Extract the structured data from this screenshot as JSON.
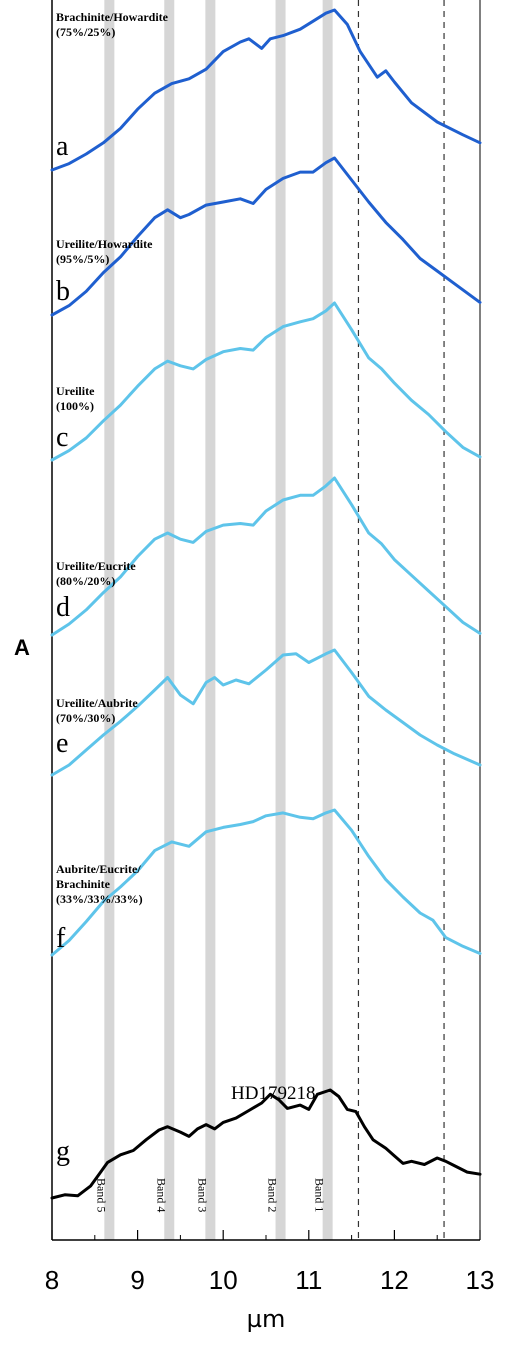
{
  "chart_data": {
    "type": "line",
    "x_axis": {
      "label": "µm",
      "range": [
        8,
        13
      ],
      "ticks": [
        "8",
        "9",
        "10",
        "11",
        "12",
        "13"
      ]
    },
    "y_axis": {
      "label": "A",
      "numeric_ticks": false
    },
    "grid": false,
    "band_markers": [
      {
        "name": "Band 5",
        "x": 8.67
      },
      {
        "name": "Band 4",
        "x": 9.37
      },
      {
        "name": "Band 3",
        "x": 9.85
      },
      {
        "name": "Band 2",
        "x": 10.67
      },
      {
        "name": "Band 1",
        "x": 11.22
      }
    ],
    "dashed_lines": [
      11.58,
      12.58
    ],
    "annotation": "HD179218",
    "series": [
      {
        "letter": "a",
        "label_line1": "Brachinite/Howardite",
        "label_line2": "(75%/25%)",
        "color": "#1f5fcf",
        "x": [
          8.0,
          8.2,
          8.4,
          8.6,
          8.8,
          9.0,
          9.2,
          9.4,
          9.6,
          9.8,
          10.0,
          10.2,
          10.3,
          10.45,
          10.55,
          10.7,
          10.9,
          11.05,
          11.2,
          11.3,
          11.45,
          11.6,
          11.8,
          11.9,
          12.0,
          12.2,
          12.5,
          12.8,
          13.0
        ],
        "y": [
          0.0,
          0.04,
          0.1,
          0.17,
          0.26,
          0.38,
          0.48,
          0.54,
          0.57,
          0.63,
          0.74,
          0.8,
          0.82,
          0.76,
          0.82,
          0.84,
          0.88,
          0.93,
          0.98,
          1.0,
          0.91,
          0.74,
          0.58,
          0.62,
          0.55,
          0.42,
          0.3,
          0.22,
          0.17
        ]
      },
      {
        "letter": "b",
        "label_line1": "Ureilite/Howardite",
        "label_line2": "(95%/5%)",
        "color": "#1f5fcf",
        "x": [
          8.0,
          8.2,
          8.4,
          8.6,
          8.8,
          9.0,
          9.2,
          9.35,
          9.5,
          9.6,
          9.8,
          10.0,
          10.2,
          10.35,
          10.5,
          10.7,
          10.9,
          11.05,
          11.2,
          11.3,
          11.5,
          11.7,
          11.9,
          12.1,
          12.3,
          12.5,
          12.7,
          13.0
        ],
        "y": [
          0.0,
          0.06,
          0.15,
          0.27,
          0.37,
          0.5,
          0.62,
          0.67,
          0.62,
          0.64,
          0.7,
          0.72,
          0.74,
          0.71,
          0.8,
          0.87,
          0.91,
          0.91,
          0.97,
          1.0,
          0.86,
          0.72,
          0.59,
          0.48,
          0.36,
          0.28,
          0.2,
          0.08
        ]
      },
      {
        "letter": "c",
        "label_line1": "Ureilite",
        "label_line2": "(100%)",
        "color": "#5ec4ea",
        "x": [
          8.0,
          8.2,
          8.4,
          8.6,
          8.8,
          9.0,
          9.2,
          9.35,
          9.5,
          9.65,
          9.8,
          10.0,
          10.2,
          10.35,
          10.5,
          10.7,
          10.9,
          11.05,
          11.2,
          11.3,
          11.5,
          11.7,
          11.85,
          12.0,
          12.2,
          12.4,
          12.6,
          12.8,
          13.0
        ],
        "y": [
          0.0,
          0.06,
          0.14,
          0.25,
          0.35,
          0.47,
          0.58,
          0.63,
          0.6,
          0.58,
          0.64,
          0.69,
          0.71,
          0.7,
          0.78,
          0.85,
          0.88,
          0.9,
          0.95,
          1.0,
          0.83,
          0.65,
          0.58,
          0.49,
          0.38,
          0.29,
          0.18,
          0.08,
          0.02
        ]
      },
      {
        "letter": "d",
        "label_line1": "Ureilite/Eucrite",
        "label_line2": "(80%/20%)",
        "color": "#5ec4ea",
        "x": [
          8.0,
          8.2,
          8.4,
          8.6,
          8.8,
          9.0,
          9.2,
          9.35,
          9.5,
          9.65,
          9.8,
          10.0,
          10.2,
          10.35,
          10.5,
          10.7,
          10.9,
          11.05,
          11.2,
          11.3,
          11.5,
          11.7,
          11.85,
          12.0,
          12.2,
          12.4,
          12.6,
          12.8,
          13.0
        ],
        "y": [
          0.0,
          0.07,
          0.16,
          0.27,
          0.37,
          0.5,
          0.61,
          0.65,
          0.61,
          0.59,
          0.66,
          0.7,
          0.71,
          0.7,
          0.79,
          0.86,
          0.89,
          0.89,
          0.95,
          1.0,
          0.83,
          0.65,
          0.58,
          0.48,
          0.38,
          0.28,
          0.18,
          0.08,
          0.01
        ]
      },
      {
        "letter": "e",
        "label_line1": "Ureilite/Aubrite",
        "label_line2": "(70%/30%)",
        "color": "#5ec4ea",
        "x": [
          8.0,
          8.2,
          8.4,
          8.6,
          8.8,
          9.0,
          9.2,
          9.35,
          9.5,
          9.65,
          9.8,
          9.9,
          10.0,
          10.15,
          10.3,
          10.5,
          10.7,
          10.85,
          11.0,
          11.2,
          11.3,
          11.5,
          11.7,
          11.9,
          12.1,
          12.3,
          12.5,
          12.7,
          13.0
        ],
        "y": [
          0.0,
          0.08,
          0.2,
          0.32,
          0.43,
          0.55,
          0.68,
          0.78,
          0.64,
          0.57,
          0.74,
          0.78,
          0.72,
          0.76,
          0.73,
          0.84,
          0.96,
          0.97,
          0.9,
          0.97,
          1.0,
          0.82,
          0.63,
          0.52,
          0.42,
          0.32,
          0.24,
          0.17,
          0.08
        ]
      },
      {
        "letter": "f",
        "label_line1": "",
        "label_line2": "",
        "color": "#5ec4ea",
        "x": [
          8.0,
          8.2,
          8.4,
          8.6,
          8.8,
          9.0,
          9.2,
          9.4,
          9.6,
          9.8,
          10.0,
          10.2,
          10.35,
          10.5,
          10.7,
          10.9,
          11.05,
          11.2,
          11.3,
          11.5,
          11.7,
          11.9,
          12.1,
          12.3,
          12.45,
          12.6,
          12.8,
          13.0
        ],
        "y": [
          0.0,
          0.1,
          0.23,
          0.37,
          0.47,
          0.58,
          0.72,
          0.78,
          0.75,
          0.85,
          0.88,
          0.9,
          0.92,
          0.96,
          0.98,
          0.95,
          0.94,
          0.98,
          1.0,
          0.86,
          0.68,
          0.52,
          0.4,
          0.29,
          0.24,
          0.12,
          0.06,
          0.01
        ]
      },
      {
        "letter": "g",
        "label_line1": "Aubrite/Eucrite/",
        "label_line2": "Brachinite",
        "label_line3": "(33%/33%/33%)",
        "color": "#000000",
        "x": [
          8.0,
          8.15,
          8.3,
          8.45,
          8.55,
          8.65,
          8.8,
          8.95,
          9.1,
          9.25,
          9.35,
          9.5,
          9.6,
          9.7,
          9.8,
          9.9,
          10.0,
          10.15,
          10.3,
          10.45,
          10.55,
          10.65,
          10.75,
          10.9,
          11.0,
          11.1,
          11.25,
          11.35,
          11.45,
          11.55,
          11.65,
          11.75,
          11.9,
          12.0,
          12.1,
          12.2,
          12.35,
          12.5,
          12.6,
          12.7,
          12.85,
          13.0
        ],
        "y": [
          0.0,
          0.03,
          0.02,
          0.11,
          0.22,
          0.33,
          0.4,
          0.44,
          0.54,
          0.63,
          0.66,
          0.61,
          0.57,
          0.64,
          0.68,
          0.64,
          0.7,
          0.74,
          0.81,
          0.88,
          0.96,
          0.91,
          0.83,
          0.86,
          0.82,
          0.96,
          1.0,
          0.94,
          0.82,
          0.8,
          0.66,
          0.54,
          0.46,
          0.39,
          0.32,
          0.34,
          0.31,
          0.37,
          0.34,
          0.3,
          0.24,
          0.22
        ]
      }
    ]
  }
}
